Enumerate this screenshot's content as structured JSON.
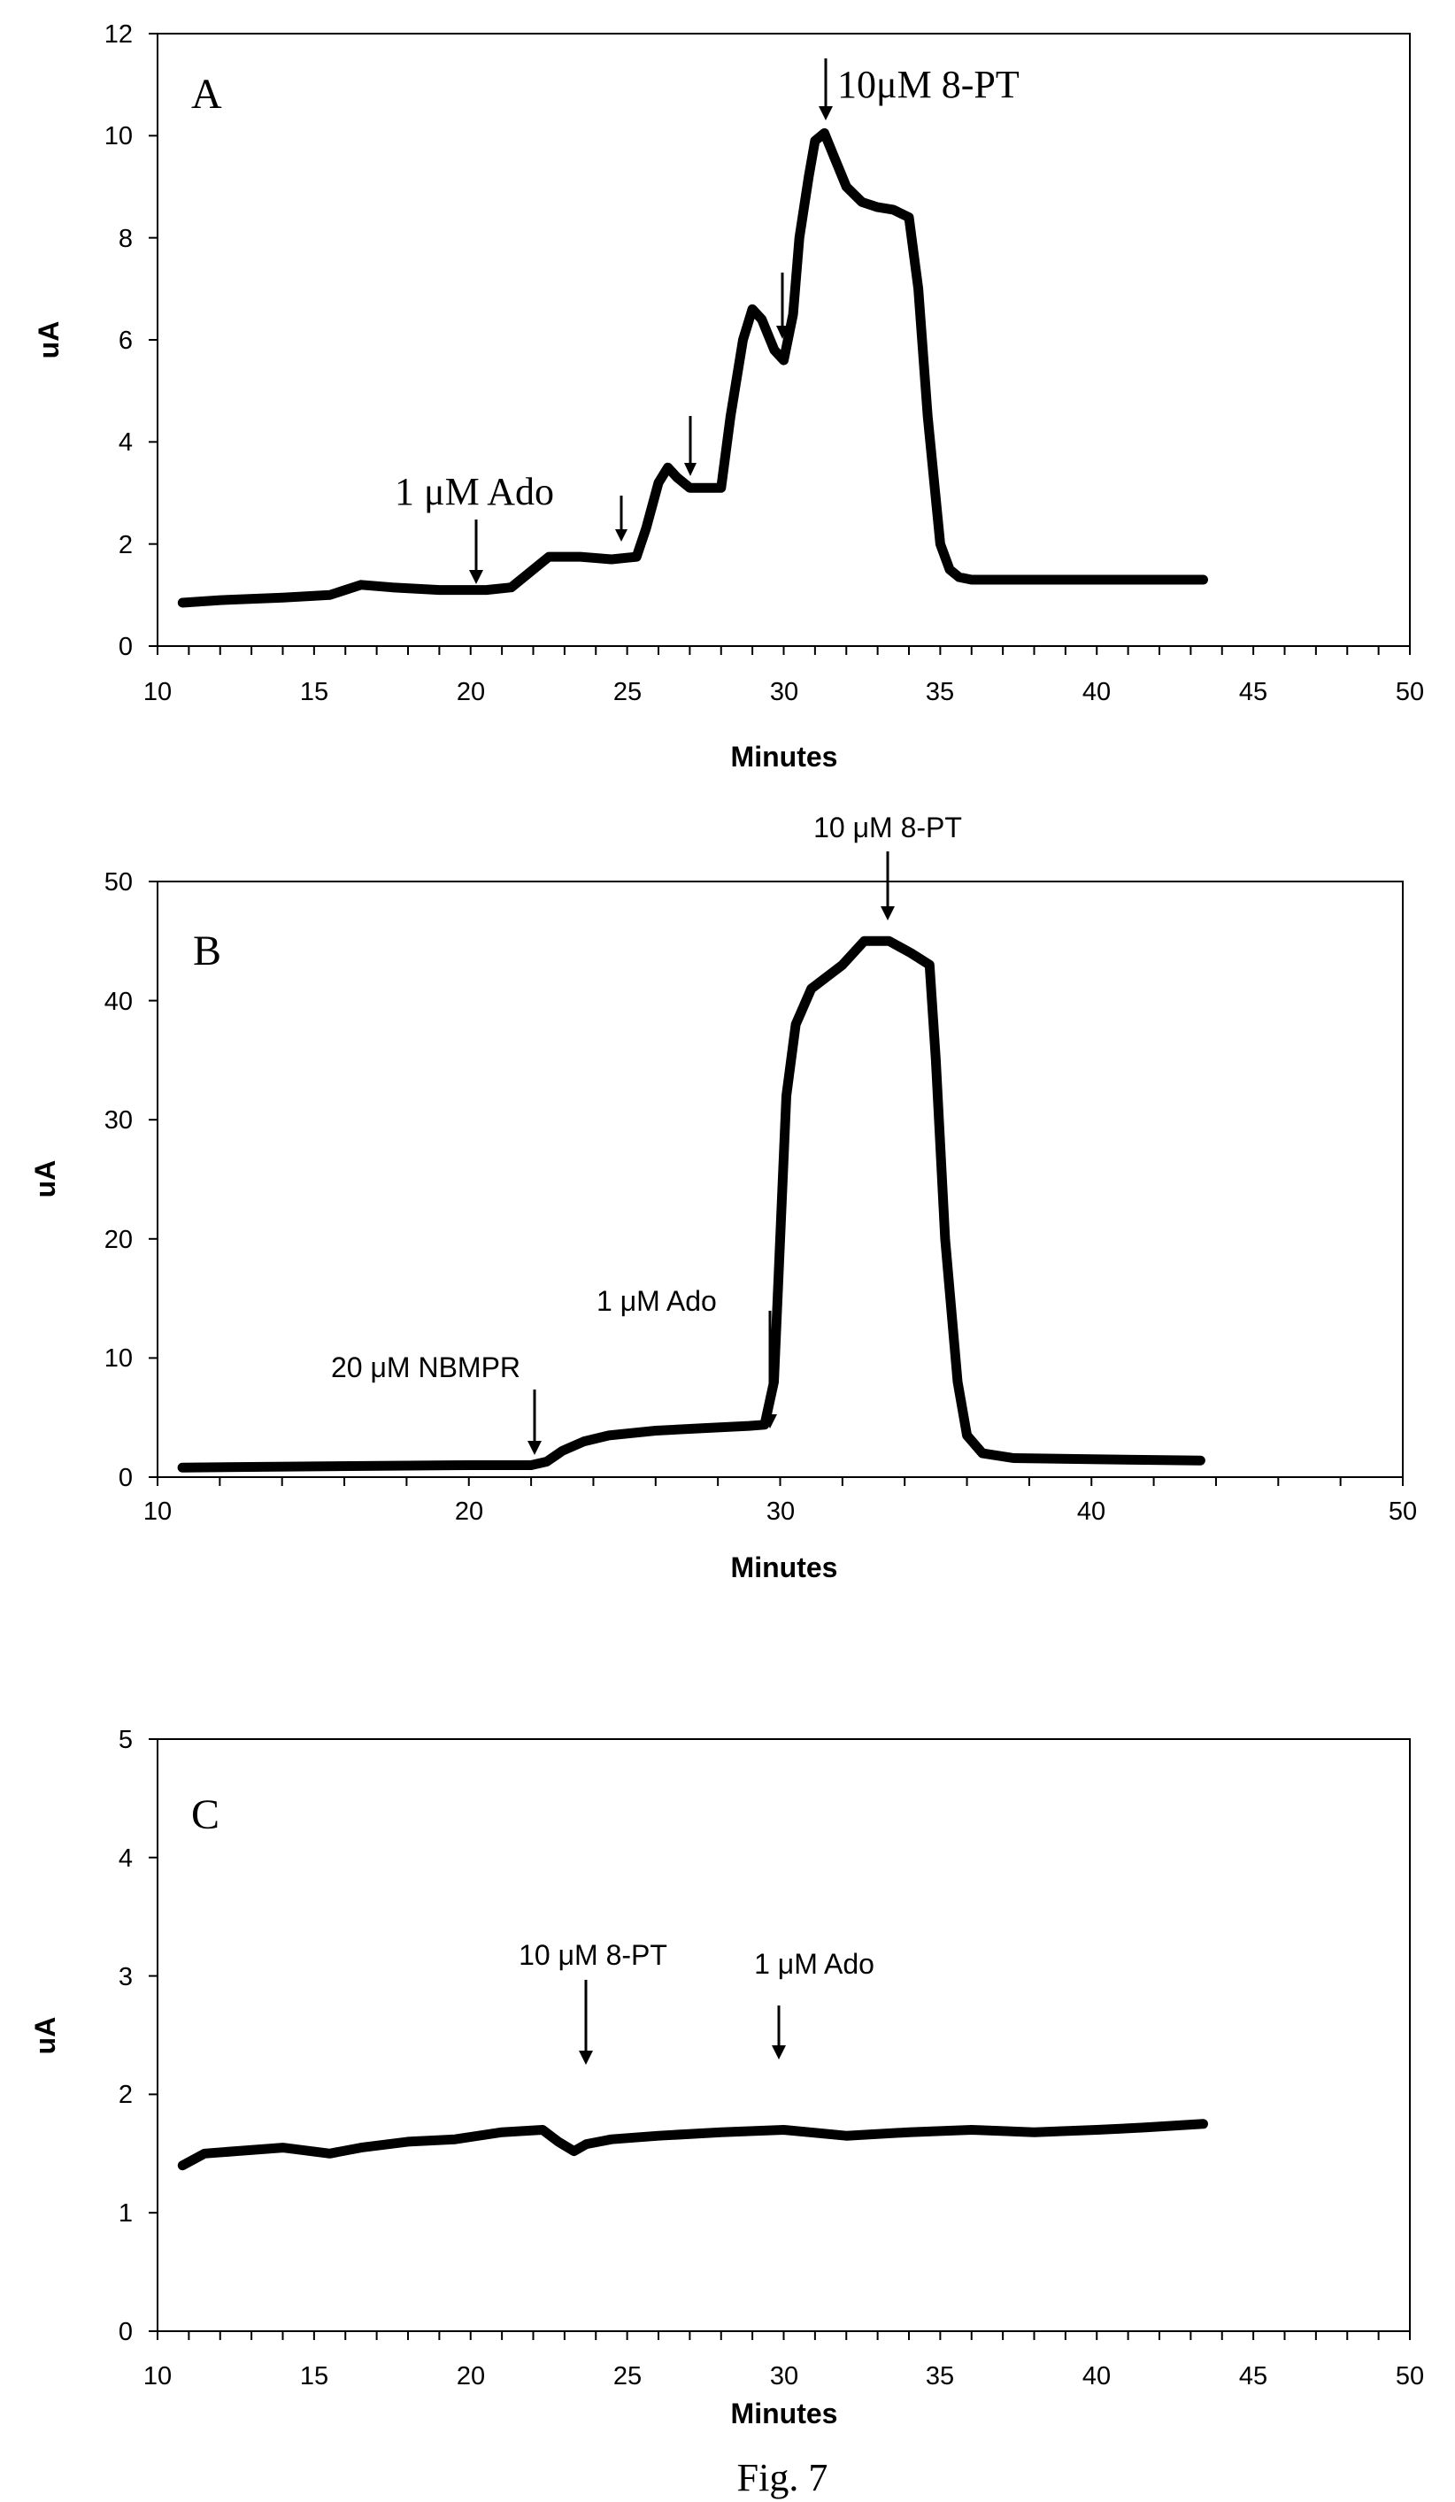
{
  "caption": "Fig. 7",
  "chart_data": [
    {
      "type": "line",
      "panel": "A",
      "xlabel": "Minutes",
      "ylabel": "uA",
      "xlim": [
        10,
        50
      ],
      "ylim": [
        0,
        12
      ],
      "xticks": [
        "10",
        "15",
        "20",
        "25",
        "30",
        "35",
        "40",
        "45",
        "50"
      ],
      "yticks": [
        "0",
        "2",
        "4",
        "6",
        "8",
        "10",
        "12"
      ],
      "grid": false,
      "x": [
        10.8,
        12,
        14,
        15.5,
        16.5,
        17.5,
        19,
        20.5,
        21.3,
        22,
        22.5,
        23.5,
        24.5,
        25.3,
        25.6,
        26,
        26.3,
        26.6,
        27,
        27.5,
        28,
        28.3,
        28.7,
        29,
        29.3,
        29.7,
        30,
        30.3,
        30.5,
        30.8,
        31,
        31.3,
        31.6,
        32,
        32.5,
        33,
        33.5,
        34,
        34.3,
        34.6,
        35,
        35.3,
        35.6,
        36,
        37,
        40,
        43.4
      ],
      "y": [
        0.85,
        0.9,
        0.95,
        1.0,
        1.2,
        1.15,
        1.1,
        1.1,
        1.15,
        1.5,
        1.75,
        1.75,
        1.7,
        1.75,
        2.3,
        3.2,
        3.5,
        3.3,
        3.1,
        3.1,
        3.1,
        4.5,
        6.0,
        6.6,
        6.4,
        5.8,
        5.6,
        6.5,
        8.0,
        9.2,
        9.9,
        10.05,
        9.6,
        9.0,
        8.7,
        8.6,
        8.55,
        8.4,
        7.0,
        4.5,
        2.0,
        1.5,
        1.35,
        1.3,
        1.3,
        1.3,
        1.3
      ],
      "annotations": [
        {
          "text": "A",
          "kind": "panel"
        },
        {
          "text": "1 μM Ado",
          "x": 20.4,
          "y": 1.15
        },
        {
          "text": "",
          "x": 24.9,
          "y": 1.75
        },
        {
          "text": "",
          "x": 27.1,
          "y": 3.1
        },
        {
          "text": "",
          "x": 30.0,
          "y": 5.6
        },
        {
          "text": "10μM 8-PT",
          "x": 31.4,
          "y": 10.0
        }
      ]
    },
    {
      "type": "line",
      "panel": "B",
      "xlabel": "Minutes",
      "ylabel": "uA",
      "xlim": [
        10,
        50
      ],
      "ylim": [
        0,
        50
      ],
      "xticks": [
        "10",
        "20",
        "30",
        "40",
        "50"
      ],
      "yticks": [
        "0",
        "10",
        "20",
        "30",
        "40",
        "50"
      ],
      "grid": false,
      "x": [
        10.8,
        15,
        20,
        22,
        22.5,
        23,
        23.7,
        24.5,
        26,
        27.5,
        29,
        29.5,
        29.8,
        30,
        30.2,
        30.5,
        31,
        32,
        32.7,
        33.5,
        34.2,
        34.8,
        35,
        35.3,
        35.7,
        36,
        36.5,
        37.5,
        40,
        43.5
      ],
      "y": [
        0.8,
        0.9,
        1.0,
        1.0,
        1.3,
        2.2,
        3.0,
        3.5,
        3.9,
        4.1,
        4.3,
        4.4,
        8.0,
        20.0,
        32.0,
        38.0,
        41.0,
        43.0,
        45.0,
        45.0,
        44.0,
        43.0,
        35.0,
        20.0,
        8.0,
        3.5,
        2.0,
        1.6,
        1.5,
        1.4
      ],
      "annotations": [
        {
          "text": "B",
          "kind": "panel"
        },
        {
          "text": "20 μM NBMPR",
          "x": 22.1,
          "y": 1.0
        },
        {
          "text": "1 μM Ado",
          "x": 29.3,
          "y": 4.4
        },
        {
          "text": "10 μM 8-PT",
          "x": 33.3,
          "y": 45.0
        }
      ]
    },
    {
      "type": "line",
      "panel": "C",
      "xlabel": "Minutes",
      "ylabel": "uA",
      "xlim": [
        10,
        50
      ],
      "ylim": [
        0,
        5
      ],
      "xticks": [
        "10",
        "15",
        "20",
        "25",
        "30",
        "35",
        "40",
        "45",
        "50"
      ],
      "yticks": [
        "0",
        "1",
        "2",
        "3",
        "4",
        "5"
      ],
      "grid": false,
      "x": [
        10.8,
        11.5,
        12.5,
        14,
        15.5,
        16.5,
        18,
        19.5,
        21,
        22.3,
        22.8,
        23.3,
        23.7,
        24.5,
        26,
        28,
        30,
        32,
        34,
        36,
        38,
        40,
        41.5,
        43.4
      ],
      "y": [
        1.4,
        1.5,
        1.52,
        1.55,
        1.5,
        1.55,
        1.6,
        1.62,
        1.68,
        1.7,
        1.6,
        1.52,
        1.58,
        1.62,
        1.65,
        1.68,
        1.7,
        1.65,
        1.68,
        1.7,
        1.68,
        1.7,
        1.72,
        1.75
      ],
      "annotations": [
        {
          "text": "C",
          "kind": "panel"
        },
        {
          "text": "10 μM 8-PT",
          "x": 23.8,
          "y": 1.65
        },
        {
          "text": "1 μM Ado",
          "x": 29.9,
          "y": 1.8
        }
      ]
    }
  ]
}
